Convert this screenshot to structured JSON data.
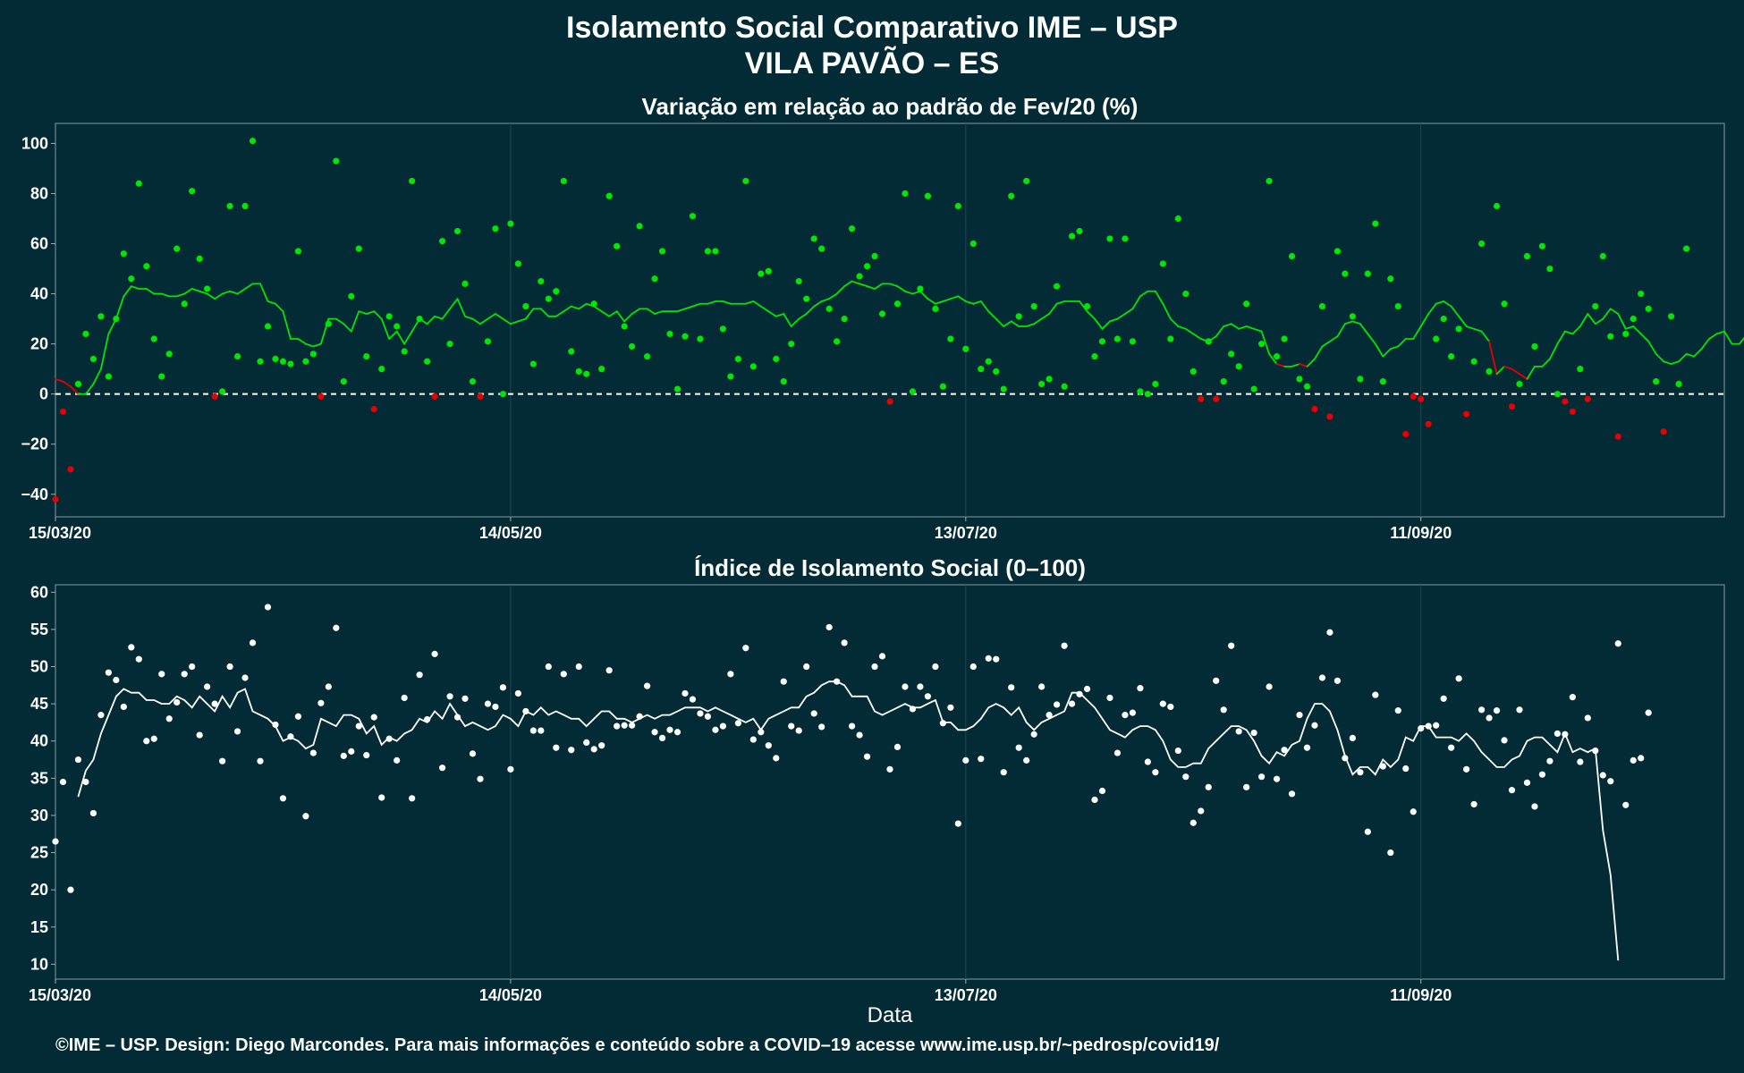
{
  "header": {
    "title": "Isolamento Social Comparativo IME – USP",
    "subtitle": "VILA PAVÃO – ES"
  },
  "footer": {
    "credit": "©IME – USP. Design: Diego Marcondes. Para mais informações e conteúdo sobre a COVID–19 acesse www.ime.usp.br/~pedrosp/covid19/"
  },
  "colors": {
    "background": "#022b35",
    "positive": "#00e600",
    "negative": "#e60000",
    "index": "#ffffff",
    "grid": "#1f4650"
  },
  "chart_data": [
    {
      "type": "scatter",
      "title": "Variação em relação ao padrão de Fev/20 (%)",
      "xlabel": "",
      "ylabel": "",
      "x_range": [
        "2020-03-15",
        "2020-10-21"
      ],
      "ylim": [
        -49,
        108
      ],
      "y_ticks": [
        100,
        80,
        60,
        40,
        20,
        0,
        -20,
        -40
      ],
      "y_tick_labels": [
        "100",
        "80",
        "60",
        "40",
        "20",
        "0",
        "−20",
        "−40"
      ],
      "x_ticks": [
        "2020-03-15",
        "2020-05-14",
        "2020-07-13",
        "2020-09-11"
      ],
      "x_tick_labels": [
        "15/03/20",
        "14/05/20",
        "13/07/20",
        "11/09/20"
      ],
      "reference_line": 0,
      "color_rule": "points and moving-average segments green when ≥ 0, red when < 0",
      "points": {
        "start_date": "2020-03-15",
        "values": [
          -42,
          -7,
          -30,
          4,
          24,
          14,
          31,
          7,
          30,
          56,
          46,
          84,
          51,
          22,
          7,
          16,
          58,
          36,
          81,
          54,
          42,
          -1,
          1,
          75,
          15,
          75,
          101,
          13,
          27,
          14,
          13,
          12,
          57,
          13,
          16,
          -1,
          28,
          93,
          5,
          39,
          58,
          15,
          -6,
          10,
          31,
          27,
          17,
          85,
          30,
          13,
          -1,
          61,
          20,
          65,
          44,
          5,
          -1,
          21,
          66,
          0,
          68,
          52,
          35,
          12,
          45,
          38,
          41,
          85,
          17,
          9,
          8,
          36,
          10,
          79,
          59,
          27,
          19,
          67,
          15,
          46,
          57,
          24,
          2,
          23,
          71,
          22,
          57,
          57,
          26,
          7,
          14,
          85,
          11,
          48,
          49,
          14,
          5,
          20,
          45,
          38,
          62,
          58,
          34,
          21,
          30,
          66,
          47,
          51,
          55,
          32,
          -3,
          36,
          80,
          1,
          42,
          79,
          34,
          3,
          22,
          75,
          18,
          60,
          10,
          13,
          9,
          2,
          79,
          31,
          85,
          35,
          4,
          6,
          43,
          3,
          63,
          65,
          35,
          15,
          21,
          62,
          22,
          62,
          21,
          1,
          0,
          4,
          52,
          22,
          70,
          40,
          9,
          -2,
          21,
          -2,
          5,
          16,
          11,
          36,
          2,
          20,
          85,
          15,
          22,
          55,
          6,
          3,
          -6,
          35,
          -9,
          57,
          48,
          31,
          6,
          48,
          68,
          5,
          46,
          35,
          -16,
          -1,
          -2,
          -12,
          22,
          30,
          15,
          26,
          -8,
          13,
          60,
          9,
          75,
          36,
          -5,
          4,
          55,
          19,
          59,
          50,
          0,
          -3,
          -7,
          10,
          -2,
          35,
          55,
          23,
          -17,
          24,
          30,
          40,
          34,
          5,
          -15,
          31,
          4,
          58
        ]
      },
      "moving_average": {
        "start_date": "2020-03-15",
        "values": [
          6,
          5,
          3,
          0,
          0,
          4,
          10,
          24,
          30,
          39,
          43,
          42,
          42,
          40,
          40,
          39,
          39,
          40,
          42,
          41,
          40,
          38,
          40,
          41,
          40,
          42,
          44,
          44,
          37,
          36,
          33,
          22,
          22,
          20,
          19,
          20,
          30,
          30,
          28,
          25,
          33,
          32,
          33,
          30,
          22,
          25,
          20,
          25,
          30,
          28,
          31,
          30,
          34,
          38,
          31,
          30,
          28,
          30,
          32,
          30,
          28,
          29,
          30,
          34,
          34,
          31,
          31,
          33,
          35,
          34,
          36,
          35,
          33,
          31,
          33,
          29,
          32,
          34,
          34,
          32,
          33,
          33,
          33,
          34,
          35,
          36,
          36,
          37,
          37,
          36,
          36,
          36,
          37,
          35,
          33,
          31,
          32,
          27,
          30,
          32,
          35,
          37,
          38,
          40,
          43,
          45,
          44,
          43,
          42,
          44,
          44,
          43,
          41,
          40,
          41,
          38,
          36,
          37,
          38,
          39,
          37,
          36,
          37,
          33,
          30,
          27,
          29,
          27,
          27,
          28,
          30,
          32,
          36,
          37,
          37,
          37,
          33,
          30,
          26,
          29,
          30,
          32,
          34,
          39,
          41,
          41,
          36,
          30,
          27,
          26,
          24,
          22,
          21,
          23,
          27,
          28,
          26,
          27,
          26,
          25,
          16,
          12,
          11,
          11,
          12,
          11,
          14,
          19,
          21,
          23,
          28,
          29,
          28,
          24,
          20,
          15,
          18,
          19,
          22,
          22,
          27,
          32,
          36,
          37,
          35,
          31,
          27,
          26,
          25,
          21,
          8,
          11,
          10,
          8,
          6,
          11,
          11,
          14,
          20,
          25,
          24,
          27,
          32,
          28,
          30,
          34,
          32,
          26,
          27,
          24,
          21,
          16,
          13,
          12,
          13,
          16,
          15,
          18,
          22,
          24,
          25,
          20,
          20,
          24,
          18,
          18,
          17,
          19
        ]
      }
    },
    {
      "type": "scatter",
      "title": "Índice de Isolamento Social (0–100)",
      "xlabel": "Data",
      "ylabel": "",
      "x_range": [
        "2020-03-15",
        "2020-10-21"
      ],
      "ylim": [
        8,
        61
      ],
      "y_ticks": [
        60,
        55,
        50,
        45,
        40,
        35,
        30,
        25,
        20,
        15,
        10
      ],
      "y_tick_labels": [
        "60",
        "55",
        "50",
        "45",
        "40",
        "35",
        "30",
        "25",
        "20",
        "15",
        "10"
      ],
      "x_ticks": [
        "2020-03-15",
        "2020-05-14",
        "2020-07-13",
        "2020-09-11"
      ],
      "x_tick_labels": [
        "15/03/20",
        "14/05/20",
        "13/07/20",
        "11/09/20"
      ],
      "points": {
        "start_date": "2020-03-15",
        "values": [
          26.5,
          34.5,
          20,
          37.5,
          34.5,
          30.3,
          43.5,
          49.2,
          48.2,
          44.6,
          52.6,
          51,
          40,
          40.3,
          49,
          43,
          45.2,
          49,
          50,
          40.8,
          47.3,
          45,
          37.3,
          50,
          41.3,
          48.5,
          53.2,
          37.3,
          58,
          42.2,
          32.3,
          40.6,
          43.3,
          29.9,
          38.4,
          45.1,
          47.3,
          55.2,
          38,
          38.6,
          42,
          38.1,
          43.2,
          32.4,
          40.3,
          37.4,
          45.8,
          32.3,
          48.9,
          42.9,
          51.7,
          36.4,
          46,
          43.2,
          45.7,
          38.3,
          34.9,
          45,
          44.6,
          47.2,
          36.2,
          46.4,
          44,
          41.4,
          41.4,
          50,
          39.1,
          49,
          38.8,
          50,
          39.8,
          38.9,
          39.4,
          49.5,
          42,
          42.1,
          42.1,
          43.3,
          47.4,
          41.2,
          40.4,
          41.5,
          41.2,
          46.4,
          45.6,
          43.7,
          43.3,
          41.5,
          42,
          49,
          42.4,
          52.5,
          40.2,
          41.2,
          39.4,
          37.7,
          48,
          42,
          41.4,
          50,
          43.7,
          41.9,
          55.3,
          48,
          53.2,
          42,
          40.8,
          37.9,
          50,
          51.4,
          36.2,
          39.2,
          47.3,
          44.3,
          47.3,
          46,
          50,
          42.4,
          44.5,
          28.9,
          37.4,
          50,
          37.6,
          51.1,
          51,
          35.8,
          47.2,
          39.1,
          37.4,
          40.9,
          47.3,
          43.5,
          44.9,
          52.8,
          45,
          46.3,
          47,
          32.1,
          33.3,
          45.8,
          38.4,
          43.5,
          43.8,
          47.1,
          37.2,
          35.8,
          45,
          44.6,
          38.7,
          35.2,
          29,
          30.6,
          33.8,
          48.1,
          44.2,
          52.8,
          41.3,
          33.8,
          41.1,
          35.2,
          47.3,
          34.9,
          38.8,
          32.9,
          43.5,
          39.1,
          42.1,
          48.5,
          54.6,
          48.1,
          37.7,
          40.4,
          35.8,
          27.8,
          46.2,
          36.6,
          25,
          44.1,
          36.3,
          30.5,
          41.7,
          42,
          42.1,
          45.7,
          39.1,
          48.4,
          36.2,
          31.5,
          44.2,
          43.1,
          44.1,
          40.1,
          33.4,
          44.2,
          34.4,
          31.2,
          35.5,
          37.3,
          41,
          40.9,
          45.9,
          37.2,
          43.1,
          38.7,
          35.4,
          34.6,
          53.1,
          31.4,
          37.4,
          37.7,
          43.8
        ]
      },
      "moving_average": {
        "start_date": "2020-03-18",
        "values": [
          32.5,
          36,
          37.5,
          41,
          43.5,
          46,
          47,
          46.5,
          46.5,
          45.5,
          45.5,
          45,
          45,
          46,
          45.5,
          44.5,
          46,
          45,
          44,
          46,
          44.5,
          46.5,
          47,
          44,
          43.5,
          43,
          42,
          40,
          40.5,
          40,
          39,
          39.5,
          43,
          42.5,
          42,
          43.5,
          43.5,
          43,
          41,
          42,
          39.5,
          40.5,
          40,
          41,
          41.5,
          43,
          42.5,
          44,
          43,
          45,
          43.5,
          42,
          42.5,
          42,
          41.5,
          42,
          43.5,
          43,
          42,
          44,
          43.5,
          44.5,
          43.5,
          44,
          43.5,
          43,
          43,
          42,
          43,
          44,
          44,
          43,
          43,
          42.5,
          43,
          43.5,
          43,
          43.5,
          43.5,
          44,
          44.5,
          44.5,
          44.5,
          44,
          44.5,
          44,
          43.5,
          43,
          42.5,
          43,
          41.5,
          43,
          43.5,
          44,
          44.5,
          44.5,
          46,
          46.5,
          47.5,
          48,
          48,
          47.5,
          46,
          46,
          46,
          44,
          43.5,
          44,
          44.5,
          45,
          44.5,
          44.5,
          45,
          45.5,
          42.5,
          42.5,
          41.5,
          41.5,
          42,
          43,
          44.5,
          45,
          44.5,
          43.5,
          44.5,
          42.5,
          41.5,
          42.5,
          43,
          43.5,
          44,
          46.5,
          46.5,
          45.5,
          44.5,
          43,
          41.5,
          41,
          40.5,
          41.5,
          42,
          42,
          41.5,
          40,
          37.5,
          36.5,
          36.5,
          37,
          37,
          39,
          40,
          41,
          42,
          42,
          41.5,
          40,
          38,
          37,
          38.5,
          38,
          39.5,
          40,
          43,
          45,
          45,
          44,
          41.5,
          38,
          35.5,
          36.5,
          36.5,
          35.5,
          37.5,
          36.5,
          37.5,
          40.5,
          40,
          42,
          42,
          40.5,
          40.5,
          40.5,
          40,
          41,
          40,
          38.5,
          37.5,
          36.5,
          36.5,
          37.5,
          38,
          40,
          40.5,
          40.5,
          39.5,
          38.5,
          41,
          38.5,
          39,
          38.5,
          39,
          28,
          22,
          10.5
        ]
      }
    }
  ]
}
